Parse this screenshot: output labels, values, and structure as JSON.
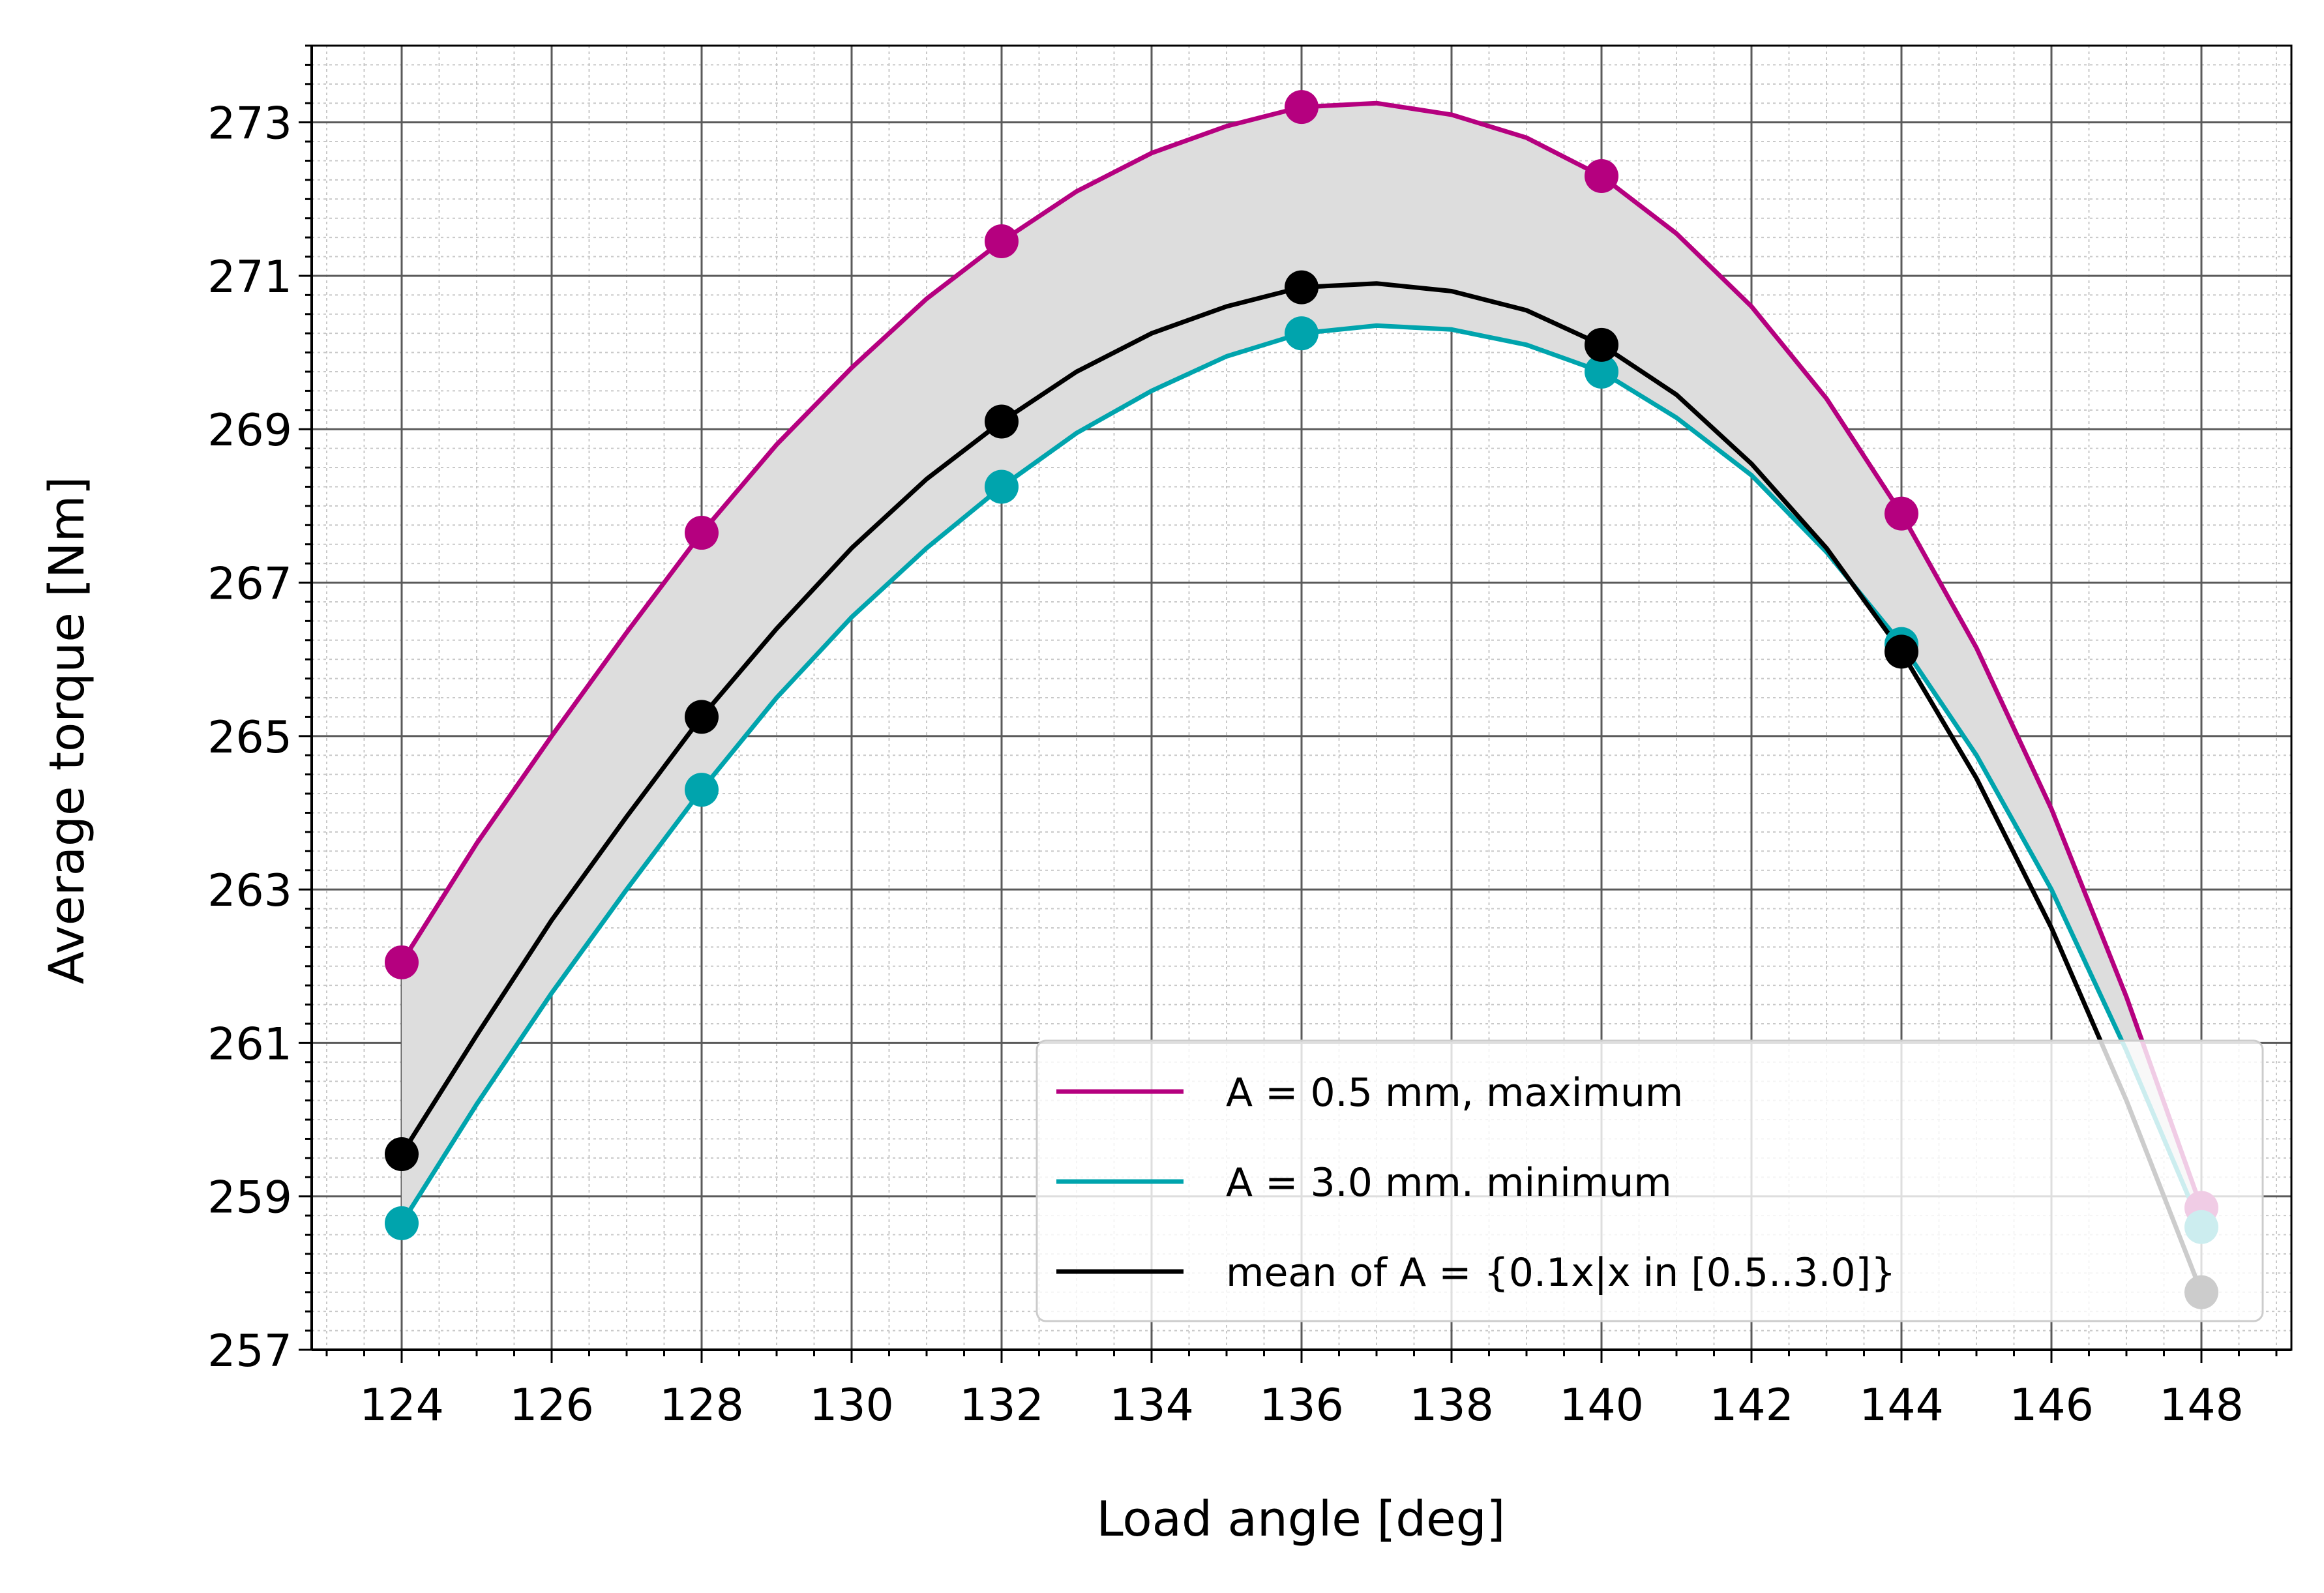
{
  "chart_data": {
    "type": "line",
    "title": "",
    "xlabel": "Load angle [deg]",
    "ylabel": "Average torque [Nm]",
    "xlim": [
      122.8,
      149.2
    ],
    "ylim": [
      257,
      274
    ],
    "x_ticks": [
      124,
      126,
      128,
      130,
      132,
      134,
      136,
      138,
      140,
      142,
      144,
      146,
      148
    ],
    "y_ticks": [
      257,
      259,
      261,
      263,
      265,
      267,
      269,
      271,
      273
    ],
    "x_tick_labels": [
      "124",
      "126",
      "128",
      "130",
      "132",
      "134",
      "136",
      "138",
      "140",
      "142",
      "144",
      "146",
      "148"
    ],
    "y_tick_labels": [
      "257",
      "259",
      "261",
      "263",
      "265",
      "267",
      "269",
      "271",
      "273"
    ],
    "grid": true,
    "minor_grid": true,
    "legend_position": "lower-right",
    "fill_between": {
      "upper": "A = 0.5 mm, maximum",
      "lower": "A = 3.0 mm. minimum",
      "color": "#dddddd"
    },
    "series": [
      {
        "name": "A = 0.5 mm, maximum",
        "color": "#b5007f",
        "x": [
          124,
          125,
          126,
          127,
          128,
          129,
          130,
          131,
          132,
          133,
          134,
          135,
          136,
          137,
          138,
          139,
          140,
          141,
          142,
          143,
          144,
          145,
          146,
          147,
          148
        ],
        "values": [
          262.05,
          263.6,
          265.0,
          266.35,
          267.65,
          268.8,
          269.8,
          270.7,
          271.45,
          272.1,
          272.6,
          272.95,
          273.2,
          273.25,
          273.1,
          272.8,
          272.3,
          271.55,
          270.6,
          269.4,
          267.9,
          266.15,
          264.05,
          261.6,
          258.85
        ],
        "markers_x": [
          124,
          128,
          132,
          136,
          140,
          144,
          148
        ],
        "markers_y": [
          262.05,
          267.65,
          271.45,
          273.2,
          272.3,
          267.9,
          258.85
        ]
      },
      {
        "name": "A = 3.0 mm. minimum",
        "color": "#00a4ad",
        "x": [
          124,
          125,
          126,
          127,
          128,
          129,
          130,
          131,
          132,
          133,
          134,
          135,
          136,
          137,
          138,
          139,
          140,
          141,
          142,
          143,
          144,
          145,
          146,
          147,
          148
        ],
        "values": [
          258.65,
          260.2,
          261.65,
          263.0,
          264.3,
          265.5,
          266.55,
          267.45,
          268.25,
          268.95,
          269.5,
          269.95,
          270.25,
          270.35,
          270.3,
          270.1,
          269.75,
          269.15,
          268.4,
          267.4,
          266.2,
          264.75,
          263.0,
          260.9,
          258.6
        ],
        "markers_x": [
          124,
          128,
          132,
          136,
          140,
          144,
          148
        ],
        "markers_y": [
          258.65,
          264.3,
          268.25,
          270.25,
          269.75,
          266.2,
          258.6
        ]
      },
      {
        "name": "mean of A = {0.1x|x in [0.5..3.0]}",
        "color": "#000000",
        "x": [
          124,
          125,
          126,
          127,
          128,
          129,
          130,
          131,
          132,
          133,
          134,
          135,
          136,
          137,
          138,
          139,
          140,
          141,
          142,
          143,
          144,
          145,
          146,
          147,
          148
        ],
        "values": [
          259.55,
          261.1,
          262.6,
          263.95,
          265.25,
          266.4,
          267.45,
          268.35,
          269.1,
          269.75,
          270.25,
          270.6,
          270.85,
          270.9,
          270.8,
          270.55,
          270.1,
          269.45,
          268.55,
          267.45,
          266.1,
          264.45,
          262.5,
          260.25,
          257.75
        ],
        "markers_x": [
          124,
          128,
          132,
          136,
          140,
          144,
          148
        ],
        "markers_y": [
          259.55,
          265.25,
          269.1,
          270.85,
          270.1,
          266.1,
          257.75
        ]
      }
    ]
  }
}
